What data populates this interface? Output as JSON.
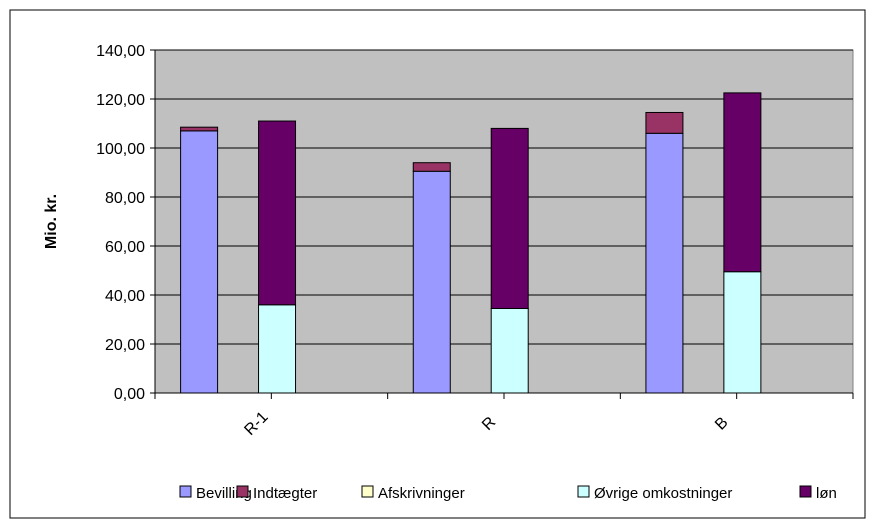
{
  "chart_data": {
    "type": "bar",
    "stacked": true,
    "ylabel": "Mio. kr.",
    "ylim": [
      0,
      140
    ],
    "yticks": [
      0,
      20,
      40,
      60,
      80,
      100,
      120,
      140
    ],
    "ytick_labels": [
      "0,00",
      "20,00",
      "40,00",
      "60,00",
      "80,00",
      "100,00",
      "120,00",
      "140,00"
    ],
    "categories": [
      "R-1",
      "R",
      "B"
    ],
    "grid": true,
    "legend_position": "bottom",
    "stacks": [
      {
        "name": "revenue",
        "series": [
          {
            "name": "Bevilling",
            "color": "#9999ff",
            "values": [
              107,
              90.5,
              106
            ]
          },
          {
            "name": "Indtægter",
            "color": "#993366",
            "values": [
              1.5,
              3.5,
              8.5
            ]
          },
          {
            "name": "Afskrivninger",
            "color": "#ffffcc",
            "values": [
              0,
              0,
              0
            ]
          }
        ]
      },
      {
        "name": "costs",
        "series": [
          {
            "name": "Øvrige omkostninger",
            "color": "#ccffff",
            "values": [
              36,
              34.5,
              49.5
            ]
          },
          {
            "name": "løn",
            "color": "#660066",
            "values": [
              75,
              73.5,
              73
            ]
          }
        ]
      }
    ],
    "plot_background": "#c0c0c0"
  }
}
